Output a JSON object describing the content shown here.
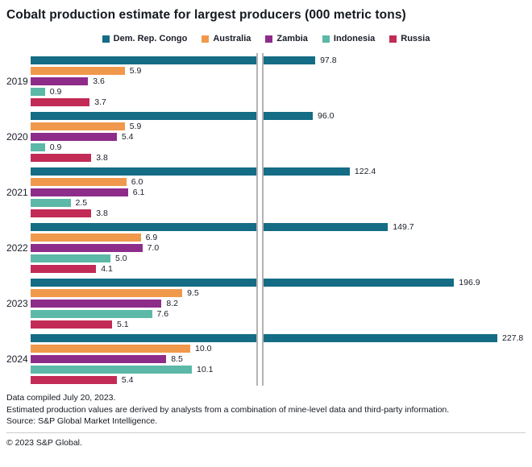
{
  "title": "Cobalt production estimate for largest producers (000 metric tons)",
  "chart_data": {
    "type": "bar",
    "orientation": "horizontal",
    "title": "Cobalt production estimate for largest producers (000 metric tons)",
    "categories": [
      "2019",
      "2020",
      "2021",
      "2022",
      "2023",
      "2024"
    ],
    "series": [
      {
        "name": "Dem. Rep. Congo",
        "color": "#146c85",
        "values": [
          97.8,
          96.0,
          122.4,
          149.7,
          196.9,
          227.8
        ]
      },
      {
        "name": "Australia",
        "color": "#f0994c",
        "values": [
          5.9,
          5.9,
          6.0,
          6.9,
          9.5,
          10.0
        ]
      },
      {
        "name": "Zambia",
        "color": "#8e2c8a",
        "values": [
          3.6,
          5.4,
          6.1,
          7.0,
          8.2,
          8.5
        ]
      },
      {
        "name": "Indonesia",
        "color": "#5cb8a7",
        "values": [
          0.9,
          0.9,
          2.5,
          5.0,
          7.6,
          10.1
        ]
      },
      {
        "name": "Russia",
        "color": "#c22b55",
        "values": [
          3.7,
          3.8,
          3.8,
          4.1,
          5.1,
          5.4
        ]
      }
    ],
    "value_labels": "right of bar, one decimal",
    "axis_break": true,
    "legend_position": "top center",
    "grid": false
  },
  "footer": {
    "compiled": "Data compiled July 20, 2023.",
    "note": "Estimated production values are derived by analysts from a combination of mine-level data and third-party information.",
    "source": "Source: S&P Global Market Intelligence.",
    "copyright": "© 2023 S&P Global."
  }
}
